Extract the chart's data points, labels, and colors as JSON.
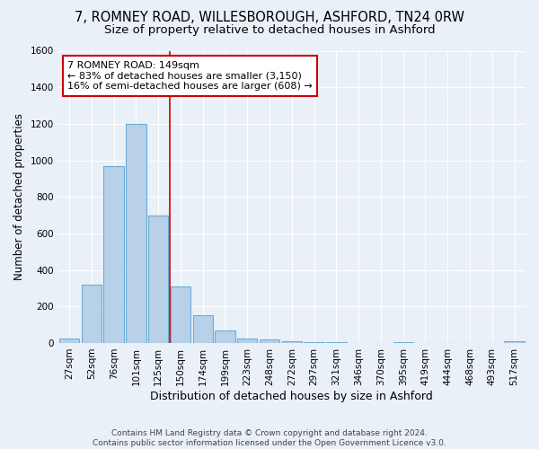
{
  "title1": "7, ROMNEY ROAD, WILLESBOROUGH, ASHFORD, TN24 0RW",
  "title2": "Size of property relative to detached houses in Ashford",
  "xlabel": "Distribution of detached houses by size in Ashford",
  "ylabel": "Number of detached properties",
  "categories": [
    "27sqm",
    "52sqm",
    "76sqm",
    "101sqm",
    "125sqm",
    "150sqm",
    "174sqm",
    "199sqm",
    "223sqm",
    "248sqm",
    "272sqm",
    "297sqm",
    "321sqm",
    "346sqm",
    "370sqm",
    "395sqm",
    "419sqm",
    "444sqm",
    "468sqm",
    "493sqm",
    "517sqm"
  ],
  "values": [
    25,
    320,
    970,
    1200,
    700,
    310,
    150,
    70,
    25,
    20,
    10,
    5,
    5,
    0,
    0,
    5,
    0,
    0,
    0,
    0,
    10
  ],
  "bar_color": "#b8d0e8",
  "bar_edge_color": "#6aaed6",
  "annotation_text": "7 ROMNEY ROAD: 149sqm\n← 83% of detached houses are smaller (3,150)\n16% of semi-detached houses are larger (608) →",
  "annotation_box_color": "#ffffff",
  "annotation_box_edge_color": "#cc0000",
  "ylim": [
    0,
    1600
  ],
  "yticks": [
    0,
    200,
    400,
    600,
    800,
    1000,
    1200,
    1400,
    1600
  ],
  "bg_color": "#eaf0f8",
  "plot_bg_color": "#eaf0f8",
  "footer": "Contains HM Land Registry data © Crown copyright and database right 2024.\nContains public sector information licensed under the Open Government Licence v3.0.",
  "grid_color": "#ffffff",
  "title_fontsize": 10.5,
  "subtitle_fontsize": 9.5,
  "tick_fontsize": 7.5,
  "ylabel_fontsize": 8.5,
  "xlabel_fontsize": 9
}
